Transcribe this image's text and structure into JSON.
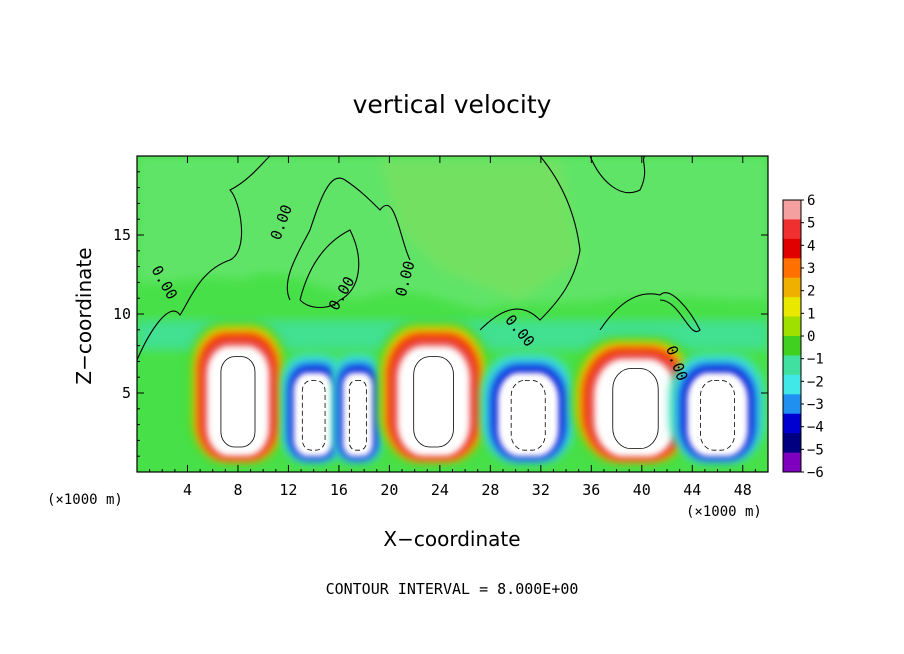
{
  "chart_data": {
    "type": "heatmap",
    "title": "vertical velocity",
    "xlabel": "X−coordinate",
    "ylabel": "Z−coordinate",
    "x_unit": "(×1000 m)",
    "z_unit": "(×1000 m)",
    "xlim": [
      0,
      50
    ],
    "zlim": [
      0,
      20
    ],
    "x_ticks": [
      4,
      8,
      12,
      16,
      20,
      24,
      28,
      32,
      36,
      40,
      44,
      48
    ],
    "x_tick_labels": [
      "4",
      "8",
      "12",
      "16",
      "20",
      "24",
      "28",
      "32",
      "36",
      "40",
      "44",
      "48"
    ],
    "z_ticks": [
      5,
      10,
      15
    ],
    "z_tick_labels": [
      "5",
      "10",
      "15"
    ],
    "colorbar": {
      "levels": [
        6,
        5,
        4,
        3,
        2,
        1,
        0,
        -1,
        -2,
        -3,
        -4,
        -5,
        -6
      ],
      "labels": [
        "6",
        "5",
        "4",
        "3",
        "2",
        "1",
        "0",
        "−1",
        "−2",
        "−3",
        "−4",
        "−5",
        "−6"
      ],
      "colors": [
        "#f4a0a0",
        "#f03030",
        "#e00000",
        "#ff7000",
        "#f0b000",
        "#e8e800",
        "#a0e000",
        "#40d020",
        "#40e0a0",
        "#40e8e8",
        "#2090f0",
        "#0000d0",
        "#000080",
        "#8000c0"
      ]
    },
    "contour_labels": [
      "0.00",
      "0.00",
      "0.00",
      "0.00",
      "0.00",
      "0.00"
    ],
    "contour_interval_text": "CONTOUR INTERVAL = 8.000E+00",
    "cells": [
      {
        "x_center": 8,
        "x_halfwidth": 3,
        "z_top": 9.5,
        "sign": "up"
      },
      {
        "x_center": 14,
        "x_halfwidth": 2,
        "z_top": 7.5,
        "sign": "down"
      },
      {
        "x_center": 17.5,
        "x_halfwidth": 1.5,
        "z_top": 7.5,
        "sign": "down"
      },
      {
        "x_center": 23.5,
        "x_halfwidth": 3.5,
        "z_top": 9.5,
        "sign": "up"
      },
      {
        "x_center": 31,
        "x_halfwidth": 3,
        "z_top": 7.5,
        "sign": "down"
      },
      {
        "x_center": 39.5,
        "x_halfwidth": 4,
        "z_top": 8.5,
        "sign": "up"
      },
      {
        "x_center": 46,
        "x_halfwidth": 3,
        "z_top": 7.5,
        "sign": "down"
      }
    ]
  }
}
